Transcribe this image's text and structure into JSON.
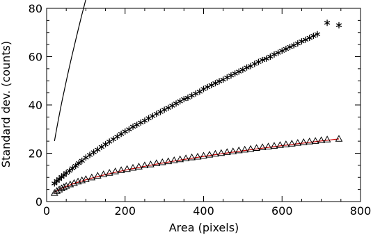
{
  "chart_data": {
    "type": "scatter",
    "title": "",
    "xlabel": "Area (pixels)",
    "ylabel": "Standard dev. (counts)",
    "xlim": [
      0,
      800
    ],
    "ylim": [
      0,
      80
    ],
    "xticks": [
      0,
      200,
      400,
      600,
      800
    ],
    "yticks": [
      0,
      20,
      40,
      60,
      80
    ],
    "grid": false,
    "series": [
      {
        "marker": "asterisk",
        "color": "#000000",
        "x": [
          20,
          26,
          32,
          38,
          44,
          50,
          58,
          66,
          74,
          82,
          90,
          100,
          110,
          120,
          130,
          140,
          150,
          160,
          170,
          180,
          190,
          200,
          210,
          220,
          230,
          240,
          250,
          260,
          270,
          280,
          290,
          300,
          310,
          320,
          330,
          340,
          350,
          360,
          370,
          380,
          390,
          400,
          410,
          420,
          430,
          440,
          450,
          460,
          470,
          480,
          490,
          500,
          510,
          520,
          530,
          540,
          550,
          560,
          570,
          580,
          590,
          600,
          610,
          620,
          630,
          640,
          650,
          660,
          670,
          680,
          690,
          715,
          745
        ],
        "y": [
          7.5,
          8.5,
          9.3,
          10.2,
          11,
          11.8,
          12.7,
          13.8,
          14.8,
          15.9,
          16.9,
          18.2,
          19.3,
          20.4,
          21.5,
          22.6,
          23.7,
          24.8,
          25.8,
          26.9,
          28,
          29,
          29.9,
          31,
          31.8,
          32.7,
          33.5,
          34.5,
          35.4,
          36.3,
          37.1,
          38,
          38.8,
          39.7,
          40.6,
          41.5,
          42.4,
          43,
          43.9,
          44.7,
          45.5,
          46.6,
          47.4,
          48.2,
          49,
          49.8,
          50.5,
          51.4,
          52.2,
          53,
          53.8,
          54.6,
          55.5,
          56.1,
          57,
          57.8,
          58.6,
          59.2,
          60,
          60.9,
          61.6,
          62.4,
          63.2,
          64,
          64.7,
          65.5,
          66.3,
          67,
          67.8,
          68.6,
          69.3,
          74,
          73
        ]
      },
      {
        "marker": "triangle",
        "color": "#000000",
        "x": [
          20,
          26,
          32,
          38,
          44,
          50,
          60,
          70,
          80,
          90,
          100,
          115,
          130,
          145,
          160,
          175,
          190,
          205,
          220,
          235,
          250,
          265,
          280,
          295,
          310,
          325,
          340,
          355,
          370,
          385,
          400,
          415,
          430,
          445,
          460,
          475,
          490,
          505,
          520,
          535,
          550,
          565,
          580,
          595,
          610,
          625,
          640,
          655,
          670,
          685,
          700,
          715,
          745
        ],
        "y": [
          3.6,
          4.4,
          5,
          5.5,
          6,
          6.5,
          7.1,
          7.7,
          8.3,
          8.8,
          9.3,
          10,
          10.7,
          11.3,
          11.9,
          12.5,
          13,
          13.5,
          14,
          14.5,
          15,
          15.4,
          15.9,
          16.3,
          16.7,
          17.1,
          17.5,
          17.9,
          18.3,
          18.6,
          19,
          19.4,
          19.8,
          20.1,
          20.5,
          20.8,
          21.2,
          21.5,
          21.8,
          22.2,
          22.5,
          22.8,
          23.1,
          23.4,
          23.7,
          24,
          24.3,
          24.6,
          24.9,
          25.1,
          25.4,
          25.7,
          26
        ]
      }
    ],
    "fits": [
      {
        "color": "#000000",
        "coef": 2.65,
        "power": 0.75
      },
      {
        "color": "#d00000",
        "coef": 0.8,
        "power": 0.526
      }
    ]
  }
}
